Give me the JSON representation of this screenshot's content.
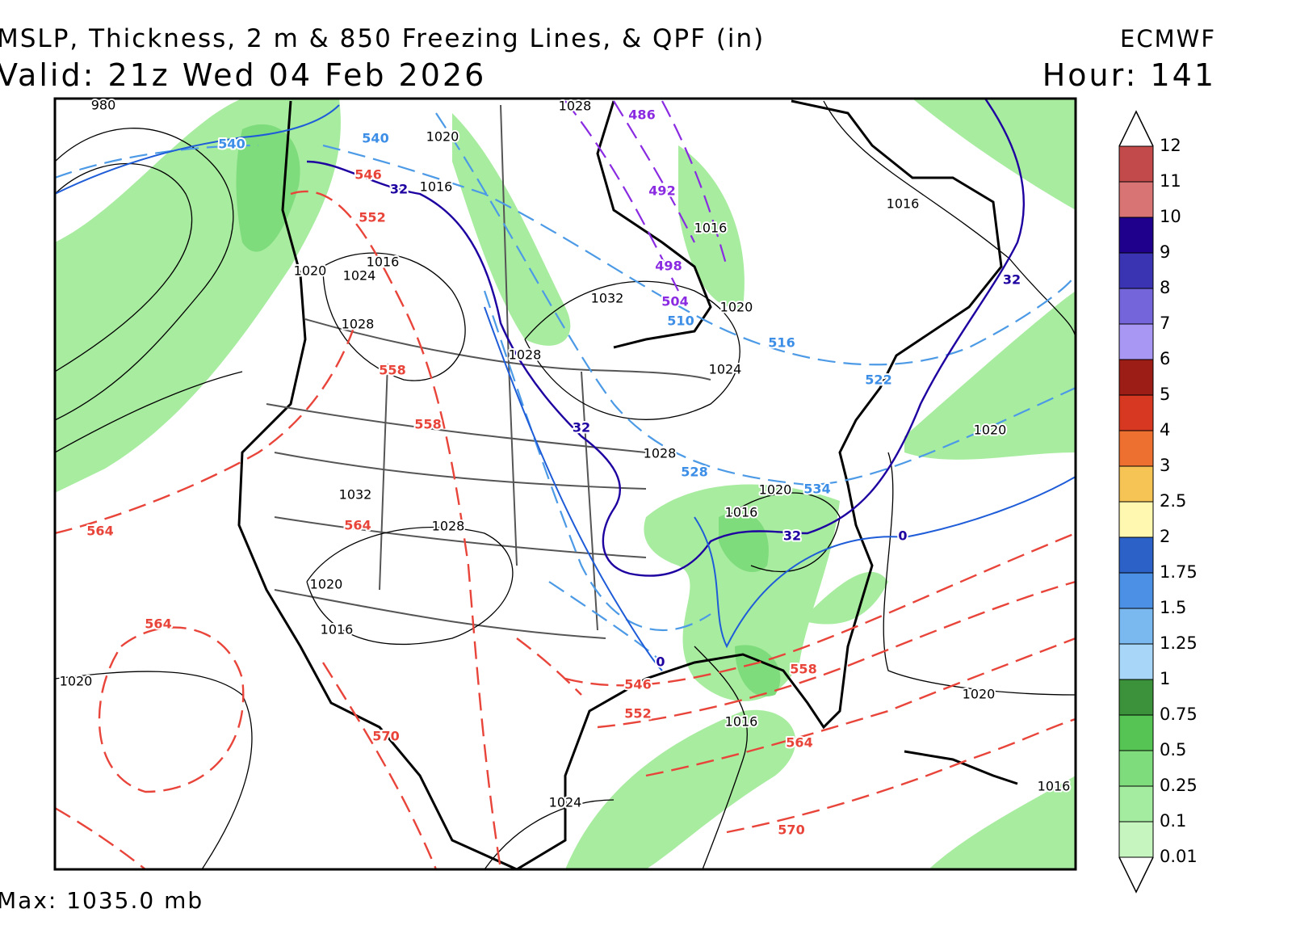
{
  "header": {
    "title": "MSLP, Thickness, 2 m & 850 Freezing Lines, & QPF (in)",
    "valid": "Valid: 21z Wed 04 Feb 2026",
    "model": "ECMWF",
    "hour": "Hour: 141"
  },
  "footer": "Max: 1035.0 mb",
  "colorbar": {
    "levels": [
      0.01,
      0.1,
      0.25,
      0.5,
      0.75,
      1,
      1.25,
      1.5,
      1.75,
      2,
      2.5,
      3,
      4,
      5,
      6,
      7,
      8,
      9,
      10,
      11,
      12
    ],
    "colors": [
      "#c6f5c0",
      "#a4eca0",
      "#7fdc7c",
      "#55c455",
      "#3c923a",
      "#a8d6f8",
      "#7ab8f0",
      "#4c90e6",
      "#2c62c8",
      "#fff8b0",
      "#f6c454",
      "#ee7030",
      "#d63822",
      "#9c1c16",
      "#a898f4",
      "#7466da",
      "#3a34b2",
      "#1e008c",
      "#d87474",
      "#c24a4a",
      "#9e2a2a"
    ]
  },
  "contour_labels": {
    "isobars": [
      "980",
      "1020",
      "1016",
      "1028",
      "1016",
      "1032",
      "1020",
      "1028",
      "1024",
      "1016",
      "1020",
      "1024",
      "1016",
      "1028",
      "1028",
      "1032",
      "1028",
      "1020",
      "1016",
      "1020",
      "1016",
      "1020",
      "1016",
      "1020",
      "1024",
      "1020",
      "1016"
    ],
    "thickness": [
      "546",
      "552",
      "558",
      "558",
      "564",
      "564",
      "564",
      "546",
      "552",
      "558",
      "564",
      "570",
      "570"
    ],
    "cold_thickness": [
      "540",
      "540",
      "510",
      "516",
      "522",
      "528",
      "534"
    ],
    "very_cold_thickness": [
      "486",
      "492",
      "498",
      "504"
    ],
    "freezing": [
      "32",
      "32",
      "32",
      "32",
      "0",
      "0"
    ]
  }
}
